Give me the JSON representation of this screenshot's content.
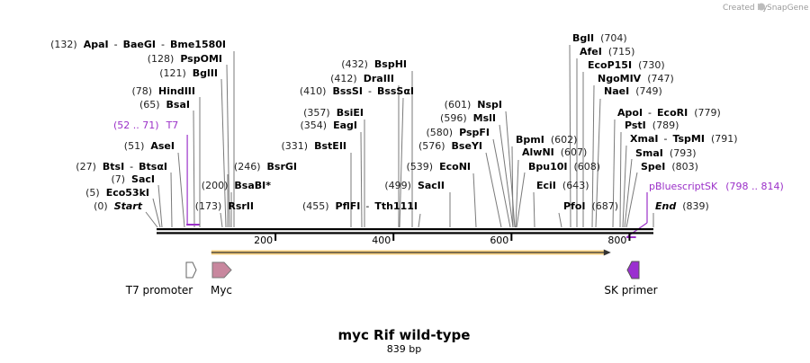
{
  "credit": {
    "created_by": "Created by",
    "brand": "SnapGene"
  },
  "map": {
    "title": "myc Rif wild-type",
    "length_label": "839 bp",
    "length": 839
  },
  "ruler": {
    "ticks": [
      "200",
      "400",
      "600",
      "800"
    ]
  },
  "sites": [
    {
      "text": [
        [
          "(132)",
          "pos"
        ],
        [
          "ApaI",
          "name"
        ],
        [
          "-",
          "sep"
        ],
        [
          "BaeGI",
          "name"
        ],
        [
          "-",
          "sep"
        ],
        [
          "Bme1580I",
          "name"
        ]
      ]
    },
    {
      "text": [
        [
          "(128)",
          "pos"
        ],
        [
          "PspOMI",
          "name"
        ]
      ]
    },
    {
      "text": [
        [
          "(121)",
          "pos"
        ],
        [
          "BglII",
          "name"
        ]
      ]
    },
    {
      "text": [
        [
          "(78)",
          "pos"
        ],
        [
          "HindIII",
          "name"
        ]
      ]
    },
    {
      "text": [
        [
          "(65)",
          "pos"
        ],
        [
          "BsaI",
          "name"
        ]
      ]
    },
    {
      "text": [
        [
          "(51)",
          "pos"
        ],
        [
          "AseI",
          "name"
        ]
      ]
    },
    {
      "text": [
        [
          "(27)",
          "pos"
        ],
        [
          "BtsI",
          "name"
        ],
        [
          "-",
          "sep"
        ],
        [
          "BtsαI",
          "name"
        ]
      ]
    },
    {
      "text": [
        [
          "(7)",
          "pos"
        ],
        [
          "SacI",
          "name"
        ]
      ]
    },
    {
      "text": [
        [
          "(5)",
          "pos"
        ],
        [
          "Eco53kI",
          "name"
        ]
      ]
    },
    {
      "text": [
        [
          "(0)",
          "pos"
        ],
        [
          "Start",
          "name"
        ]
      ]
    },
    {
      "text": [
        [
          "(246)",
          "pos"
        ],
        [
          "BsrGI",
          "name"
        ]
      ]
    },
    {
      "text": [
        [
          "(200)",
          "pos"
        ],
        [
          "BsaBI",
          "name"
        ],
        [
          "*",
          "name"
        ]
      ]
    },
    {
      "text": [
        [
          "(173)",
          "pos"
        ],
        [
          "RsrII",
          "name"
        ]
      ]
    },
    {
      "text": [
        [
          "(432)",
          "pos"
        ],
        [
          "BspHI",
          "name"
        ]
      ]
    },
    {
      "text": [
        [
          "(412)",
          "pos"
        ],
        [
          "DraIII",
          "name"
        ]
      ]
    },
    {
      "text": [
        [
          "(410)",
          "pos"
        ],
        [
          "BssSI",
          "name"
        ],
        [
          "-",
          "sep"
        ],
        [
          "BssSαI",
          "name"
        ]
      ]
    },
    {
      "text": [
        [
          "(357)",
          "pos"
        ],
        [
          "BsiEI",
          "name"
        ]
      ]
    },
    {
      "text": [
        [
          "(354)",
          "pos"
        ],
        [
          "EagI",
          "name"
        ]
      ]
    },
    {
      "text": [
        [
          "(331)",
          "pos"
        ],
        [
          "BstEII",
          "name"
        ]
      ]
    },
    {
      "text": [
        [
          "(455)",
          "pos"
        ],
        [
          "PflFI",
          "name"
        ],
        [
          "-",
          "sep"
        ],
        [
          "Tth111I",
          "name"
        ]
      ]
    },
    {
      "text": [
        [
          "(601)",
          "pos"
        ],
        [
          "NspI",
          "name"
        ]
      ]
    },
    {
      "text": [
        [
          "(596)",
          "pos"
        ],
        [
          "MslI",
          "name"
        ]
      ]
    },
    {
      "text": [
        [
          "(580)",
          "pos"
        ],
        [
          "PspFI",
          "name"
        ]
      ]
    },
    {
      "text": [
        [
          "(576)",
          "pos"
        ],
        [
          "BseYI",
          "name"
        ]
      ]
    },
    {
      "text": [
        [
          "(539)",
          "pos"
        ],
        [
          "EcoNI",
          "name"
        ]
      ]
    },
    {
      "text": [
        [
          "(499)",
          "pos"
        ],
        [
          "SacII",
          "name"
        ]
      ]
    },
    {
      "text": [
        [
          "BglI",
          "name"
        ],
        [
          "(704)",
          "pos"
        ]
      ]
    },
    {
      "text": [
        [
          "AfeI",
          "name"
        ],
        [
          "(715)",
          "pos"
        ]
      ]
    },
    {
      "text": [
        [
          "EcoP15I",
          "name"
        ],
        [
          "(730)",
          "pos"
        ]
      ]
    },
    {
      "text": [
        [
          "NgoMIV",
          "name"
        ],
        [
          "(747)",
          "pos"
        ]
      ]
    },
    {
      "text": [
        [
          "NaeI",
          "name"
        ],
        [
          "(749)",
          "pos"
        ]
      ]
    },
    {
      "text": [
        [
          "ApoI",
          "name"
        ],
        [
          "-",
          "sep"
        ],
        [
          "EcoRI",
          "name"
        ],
        [
          "(779)",
          "pos"
        ]
      ]
    },
    {
      "text": [
        [
          "PstI",
          "name"
        ],
        [
          "(789)",
          "pos"
        ]
      ]
    },
    {
      "text": [
        [
          "XmaI",
          "name"
        ],
        [
          "-",
          "sep"
        ],
        [
          "TspMI",
          "name"
        ],
        [
          "(791)",
          "pos"
        ]
      ]
    },
    {
      "text": [
        [
          "SmaI",
          "name"
        ],
        [
          "(793)",
          "pos"
        ]
      ]
    },
    {
      "text": [
        [
          "SpeI",
          "name"
        ],
        [
          "(803)",
          "pos"
        ]
      ]
    },
    {
      "text": [
        [
          "BpmI",
          "name"
        ],
        [
          "(602)",
          "pos"
        ]
      ]
    },
    {
      "text": [
        [
          "AlwNI",
          "name"
        ],
        [
          "(607)",
          "pos"
        ]
      ]
    },
    {
      "text": [
        [
          "Bpu10I",
          "name"
        ],
        [
          "(608)",
          "pos"
        ]
      ]
    },
    {
      "text": [
        [
          "EciI",
          "name"
        ],
        [
          "(643)",
          "pos"
        ]
      ]
    },
    {
      "text": [
        [
          "PfoI",
          "name"
        ],
        [
          "(687)",
          "pos"
        ]
      ]
    },
    {
      "text": [
        [
          "End",
          "name"
        ],
        [
          "(839)",
          "pos"
        ]
      ]
    }
  ],
  "primers": [
    {
      "range": "(52 .. 71)",
      "name": "T7",
      "start": 52,
      "end": 71
    },
    {
      "name": "pBluescriptSK",
      "range": "(798 .. 814)",
      "start": 798,
      "end": 814
    }
  ],
  "features": [
    {
      "name": "T7 promoter",
      "color": "#ffffff"
    },
    {
      "name": "Myc",
      "color": "#c8879e"
    },
    {
      "name": "SK primer",
      "color": "#9b30d0"
    }
  ],
  "orf": {
    "color": "#f6c766",
    "start": 92,
    "end": 767
  }
}
